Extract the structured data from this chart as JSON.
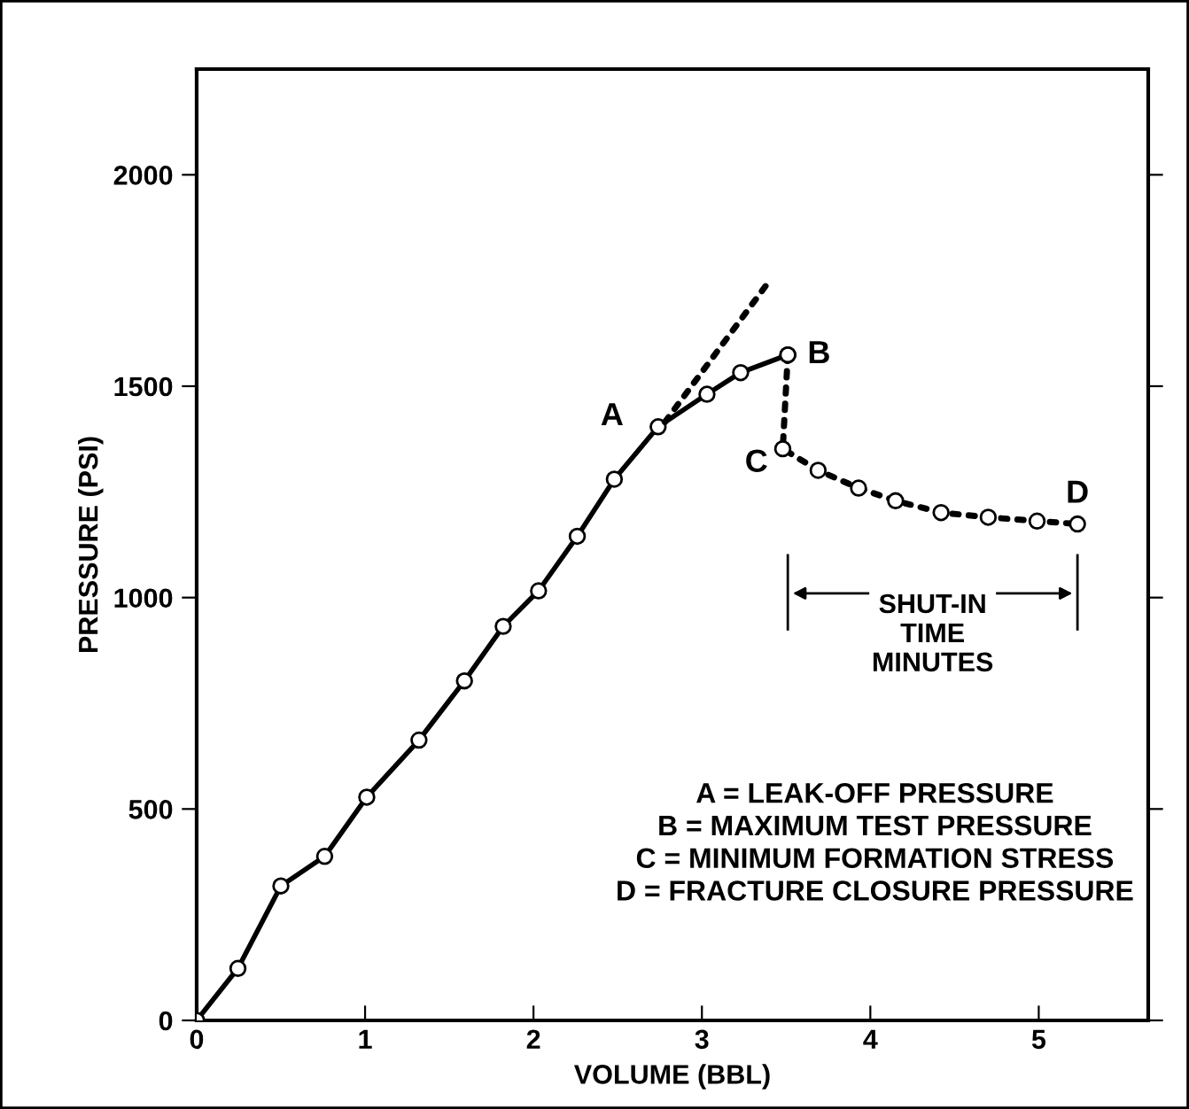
{
  "chart_data": {
    "type": "line",
    "xlabel": "VOLUME (BBL)",
    "ylabel": "PRESSURE (PSI)",
    "xlim": [
      0,
      5.65
    ],
    "ylim": [
      0,
      2250
    ],
    "xticks": [
      0,
      1,
      2,
      3,
      4,
      5
    ],
    "yticks": [
      0,
      500,
      1000,
      1500,
      2000
    ],
    "grid": false,
    "legend": false,
    "marker": "circle",
    "series": [
      {
        "color": "#000000",
        "line_style": "solid",
        "x": [
          0,
          0.245,
          0.5,
          0.76,
          1.01,
          1.32,
          1.59,
          1.82,
          2.03,
          2.26,
          2.48,
          2.74,
          3.03,
          3.23,
          3.51
        ],
        "values": [
          0,
          123,
          318,
          388,
          528,
          663,
          803,
          932,
          1016,
          1145,
          1280,
          1404,
          1481,
          1532,
          1574
        ]
      },
      {
        "color": "#000000",
        "line_style": "dotted",
        "x": [
          3.51,
          3.48,
          3.69,
          3.93,
          4.15,
          4.42,
          4.7,
          4.99,
          5.23
        ],
        "values": [
          1574,
          1352,
          1301,
          1259,
          1229,
          1201,
          1190,
          1181,
          1174
        ]
      },
      {
        "color": "#000000",
        "line_style": "dotted",
        "marker": "none",
        "x": [
          2.78,
          3.41
        ],
        "values": [
          1415,
          1754
        ]
      }
    ],
    "annotations": [
      {
        "text": "A",
        "x": 2.74,
        "y": 1404
      },
      {
        "text": "B",
        "x": 3.51,
        "y": 1574
      },
      {
        "text": "C",
        "x": 3.48,
        "y": 1352
      },
      {
        "text": "D",
        "x": 5.23,
        "y": 1174
      },
      "SHUT-IN\nTIME\nMINUTES",
      "A = LEAK-OFF PRESSURE\nB = MAXIMUM TEST PRESSURE\nC = MINIMUM FORMATION STRESS\nD = FRACTURE CLOSURE PRESSURE"
    ]
  }
}
